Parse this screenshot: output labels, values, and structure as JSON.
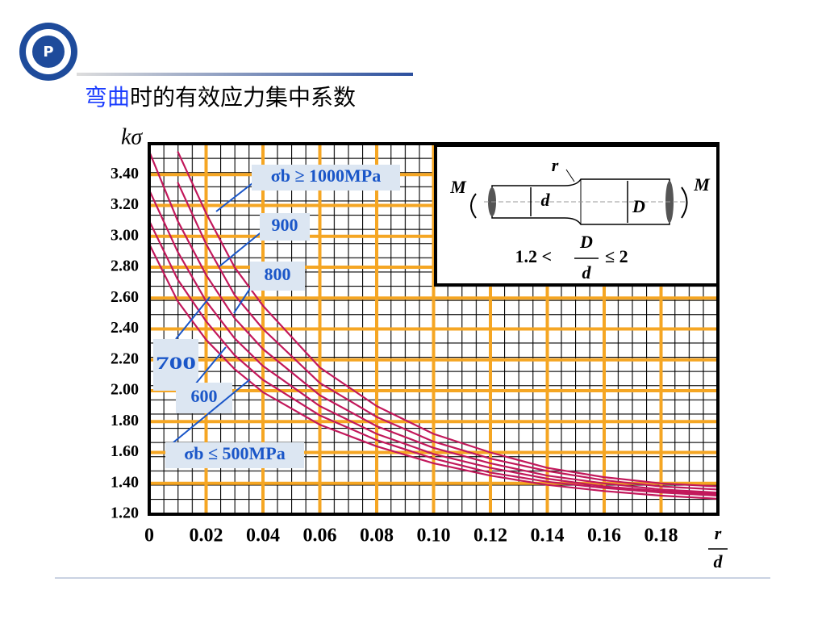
{
  "slide": {
    "title_highlight": "弯曲",
    "title_rest": "时的有效应力集中系数"
  },
  "chart_data": {
    "type": "line",
    "y_label": "kσ",
    "x_label": {
      "numerator": "r",
      "denominator": "d"
    },
    "x": [
      0,
      0.01,
      0.02,
      0.03,
      0.04,
      0.06,
      0.08,
      0.1,
      0.12,
      0.14,
      0.16,
      0.18,
      0.2
    ],
    "series": [
      {
        "name": "σb ≥ 1000MPa",
        "color": "#c2185b",
        "values": [
          null,
          3.55,
          3.15,
          2.8,
          2.55,
          2.15,
          1.9,
          1.72,
          1.6,
          1.5,
          1.44,
          1.4,
          1.38
        ]
      },
      {
        "name": "900",
        "color": "#c2185b",
        "values": [
          null,
          3.35,
          2.95,
          2.62,
          2.4,
          2.05,
          1.83,
          1.67,
          1.56,
          1.48,
          1.42,
          1.38,
          1.36
        ]
      },
      {
        "name": "800",
        "color": "#c2185b",
        "values": [
          3.55,
          3.1,
          2.75,
          2.47,
          2.27,
          1.97,
          1.77,
          1.63,
          1.53,
          1.45,
          1.4,
          1.36,
          1.34
        ]
      },
      {
        "name": "700",
        "color": "#c2185b",
        "values": [
          3.3,
          2.9,
          2.58,
          2.34,
          2.16,
          1.9,
          1.72,
          1.59,
          1.5,
          1.43,
          1.38,
          1.35,
          1.33
        ]
      },
      {
        "name": "600",
        "color": "#c2185b",
        "values": [
          3.1,
          2.72,
          2.45,
          2.23,
          2.07,
          1.84,
          1.68,
          1.56,
          1.47,
          1.41,
          1.37,
          1.34,
          1.32
        ]
      },
      {
        "name": "σb ≤ 500MPa",
        "color": "#c2185b",
        "values": [
          2.95,
          2.58,
          2.33,
          2.14,
          1.99,
          1.78,
          1.64,
          1.53,
          1.45,
          1.39,
          1.35,
          1.32,
          1.3
        ]
      }
    ],
    "xlim": [
      0,
      0.2
    ],
    "ylim": [
      1.2,
      3.6
    ],
    "xticks": [
      0,
      0.02,
      0.04,
      0.06,
      0.08,
      {
        "value": 0.1,
        "label": "0.10"
      },
      {
        "value": 0.12,
        "label": "0.12"
      },
      {
        "value": 0.14,
        "label": "0.14"
      },
      {
        "value": 0.16,
        "label": "0.16"
      },
      {
        "value": 0.18,
        "label": "0.18"
      }
    ],
    "yticks": [
      {
        "value": 1.2,
        "label": "1.20"
      },
      {
        "value": 1.4,
        "label": "1.40"
      },
      {
        "value": 1.6,
        "label": "1.60"
      },
      {
        "value": 1.8,
        "label": "1.80"
      },
      {
        "value": 2.0,
        "label": "2.00"
      },
      {
        "value": 2.2,
        "label": "2.20"
      },
      {
        "value": 2.4,
        "label": "2.40"
      },
      {
        "value": 2.6,
        "label": "2.60"
      },
      {
        "value": 2.8,
        "label": "2.80"
      },
      {
        "value": 3.0,
        "label": "3.00"
      },
      {
        "value": 3.2,
        "label": "3.20"
      },
      {
        "value": 3.4,
        "label": "3.40"
      }
    ],
    "grid": true,
    "grid_color": "#f5a623",
    "inset": {
      "r": "r",
      "m_left": "M",
      "m_right": "M",
      "d": "d",
      "D": "D",
      "condition_left": "1.2 <",
      "fraction_num": "D",
      "fraction_den": "d",
      "condition_right": "≤ 2"
    }
  }
}
